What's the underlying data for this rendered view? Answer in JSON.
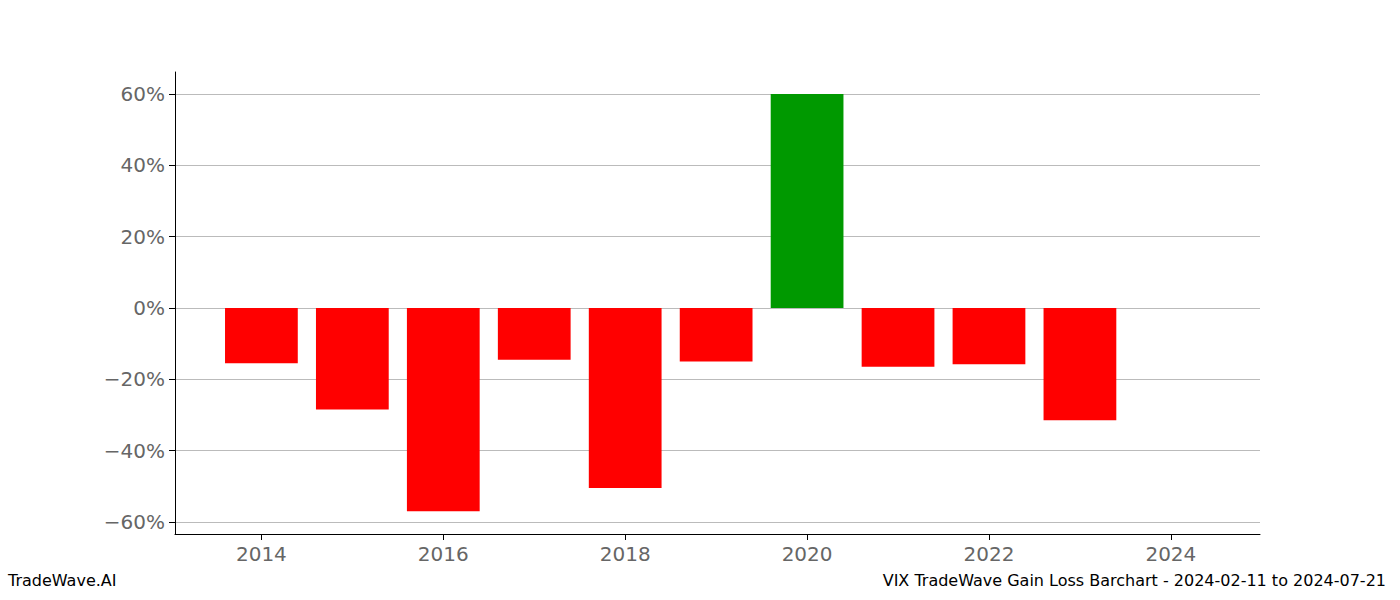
{
  "chart_data": {
    "type": "bar",
    "title": "VIX TradeWave Gain Loss Barchart - 2024-02-11 to 2024-07-21",
    "annotations": [
      "TradeWave.AI"
    ],
    "x": [
      2014,
      2015,
      2016,
      2017,
      2018,
      2019,
      2020,
      2021,
      2022,
      2023
    ],
    "values": [
      -15.5,
      -28.5,
      -57,
      -14.5,
      -50.5,
      -15,
      60,
      -16.5,
      -15.8,
      -31.5
    ],
    "colors": [
      "#ff0000",
      "#ff0000",
      "#ff0000",
      "#ff0000",
      "#ff0000",
      "#ff0000",
      "#009900",
      "#ff0000",
      "#ff0000",
      "#ff0000"
    ],
    "xlim": [
      2013.05,
      2024.98
    ],
    "xticks": [
      2014,
      2016,
      2018,
      2020,
      2022,
      2024
    ],
    "ylim": [
      -63.4,
      66.2
    ],
    "yticks": [
      {
        "value": -60,
        "label": "−60%"
      },
      {
        "value": -40,
        "label": "−40%"
      },
      {
        "value": -20,
        "label": "−20%"
      },
      {
        "value": 0,
        "label": "0%"
      },
      {
        "value": 20,
        "label": "20%"
      },
      {
        "value": 40,
        "label": "40%"
      },
      {
        "value": 60,
        "label": "60%"
      }
    ],
    "grid": true
  }
}
